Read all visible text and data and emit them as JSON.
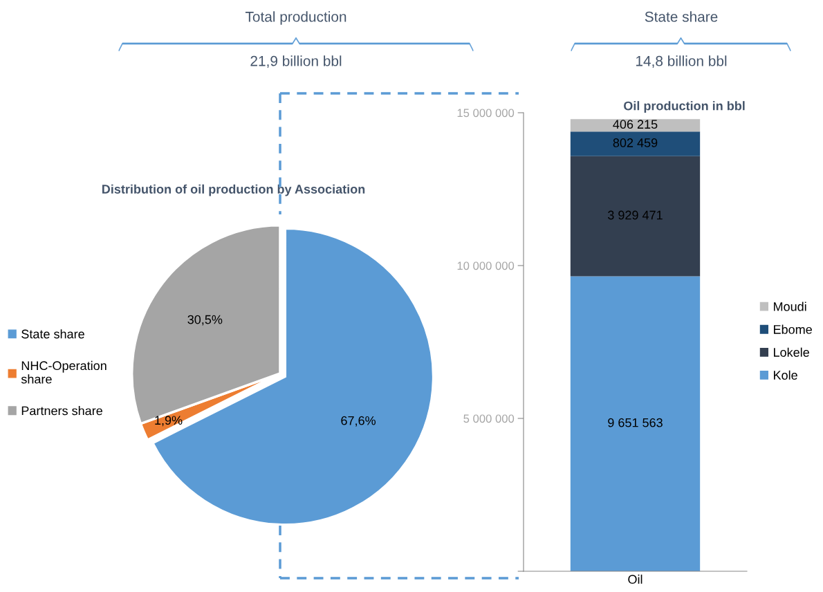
{
  "chart_data": [
    {
      "type": "pie",
      "title": "Distribution of oil production by Association",
      "categories": [
        "State share",
        "NHC-Operation share",
        "Partners share"
      ],
      "values": [
        67.6,
        1.9,
        30.5
      ],
      "value_labels": [
        "67,6%",
        "1,9%",
        "30,5%"
      ],
      "colors": [
        "#5b9bd5",
        "#ed7d31",
        "#a5a5a5"
      ],
      "legend": "left",
      "annotations": [
        "Total production",
        "21,9 billion bbl"
      ]
    },
    {
      "type": "bar",
      "title": "Oil production in bbl",
      "stacked": true,
      "categories": [
        "Oil"
      ],
      "ylim": [
        0,
        15000000
      ],
      "yticks": [
        {
          "value": 0,
          "label": null
        },
        {
          "value": 5000000,
          "label": "5 000 000"
        },
        {
          "value": 10000000,
          "label": "10 000 000"
        },
        {
          "value": 15000000,
          "label": "15 000 000"
        }
      ],
      "legend": "right",
      "series": [
        {
          "name": "Kole",
          "color": "#5b9bd5",
          "values": [
            9651563
          ],
          "value_labels": [
            "9 651 563"
          ]
        },
        {
          "name": "Lokele",
          "color": "#333f50",
          "values": [
            3929471
          ],
          "value_labels": [
            "3 929 471"
          ]
        },
        {
          "name": "Ebome",
          "color": "#1f4e79",
          "values": [
            802459
          ],
          "value_labels": [
            "802 459"
          ]
        },
        {
          "name": "Moudi",
          "color": "#bfbfbf",
          "values": [
            406215
          ],
          "value_labels": [
            "406 215"
          ]
        }
      ],
      "annotations": [
        "State share",
        "14,8 billion bbl"
      ]
    }
  ]
}
